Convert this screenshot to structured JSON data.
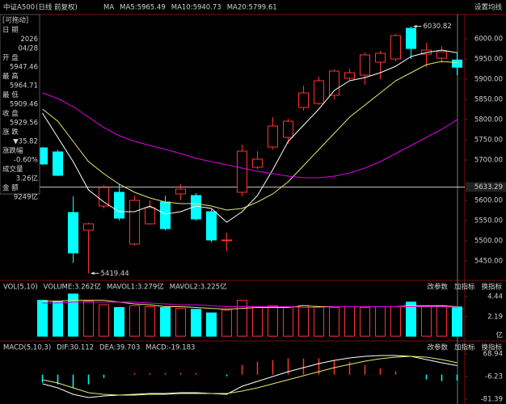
{
  "header": {
    "symbol": "中证A500",
    "period": "(日线 前复权)",
    "settings": "设置均线"
  },
  "panel_buttons": [
    "改参数",
    "加指标",
    "换指标"
  ],
  "info_panel": {
    "drag_hint": "[可拖动]",
    "rows": [
      {
        "label": "日 期",
        "values": [
          "2026",
          "04/28"
        ],
        "color": "#ffffff"
      },
      {
        "label": "开 盘",
        "values": [
          "5947.46"
        ],
        "color": "#00e0e0"
      },
      {
        "label": "最 高",
        "values": [
          "5964.71"
        ],
        "color": "#00e0e0"
      },
      {
        "label": "最 低",
        "values": [
          "5909.46"
        ],
        "color": "#00e0e0"
      },
      {
        "label": "收 盘",
        "values": [
          "5929.56"
        ],
        "color": "#00e0e0"
      },
      {
        "label": "涨 跌",
        "values": [
          "▼35.82"
        ],
        "color": "#00e0e0"
      },
      {
        "label": "涨跌幅",
        "values": [
          "-0.60%"
        ],
        "color": "#00e0e0"
      },
      {
        "label": "成交量",
        "values": [
          "3.26亿"
        ],
        "color": "#ffffff"
      },
      {
        "label": "金 额",
        "values": [
          "9249亿"
        ],
        "color": "#00e0e0"
      }
    ]
  },
  "chart_data": [
    {
      "type": "candlestick",
      "indicator": "MA",
      "up_color": "#ff3232",
      "down_color": "#00ffff",
      "open": [
        5730,
        5720,
        5570,
        5526,
        5586,
        5620,
        5492,
        5542,
        5596,
        5616,
        5612,
        5572,
        5500,
        5620,
        5682,
        5732,
        5756,
        5830,
        5840,
        5860,
        5902,
        5910,
        5942,
        5950,
        6026,
        5962,
        5952,
        5947.46
      ],
      "high": [
        5732,
        5725,
        5610,
        5545,
        5638,
        5640,
        5612,
        5600,
        5612,
        5640,
        5618,
        5578,
        5520,
        5738,
        5722,
        5806,
        5802,
        5884,
        5906,
        5924,
        5926,
        5966,
        5970,
        6012,
        6030.82,
        5990,
        5982,
        5964.71
      ],
      "low": [
        5688,
        5660,
        5445,
        5419.44,
        5580,
        5550,
        5488,
        5540,
        5526,
        5600,
        5550,
        5496,
        5474,
        5610,
        5678,
        5726,
        5740,
        5822,
        5836,
        5850,
        5898,
        5886,
        5900,
        5944,
        5950,
        5930,
        5940,
        5909.46
      ],
      "close": [
        5690,
        5662,
        5470,
        5542,
        5632,
        5556,
        5600,
        5582,
        5530,
        5628,
        5554,
        5502,
        5502,
        5722,
        5702,
        5784,
        5796,
        5866,
        5896,
        5920,
        5916,
        5960,
        5964,
        6008,
        5976,
        5972,
        5968,
        5929.56
      ],
      "series": [
        {
          "name": "MA5:5965.49",
          "color": "#ffffff",
          "values": [
            5816,
            5756,
            5696,
            5626,
            5596,
            5572,
            5572,
            5586,
            5566,
            5572,
            5586,
            5580,
            5546,
            5572,
            5612,
            5676,
            5746,
            5786,
            5826,
            5872,
            5896,
            5904,
            5916,
            5932,
            5956,
            5966,
            5972,
            5965.49
          ]
        },
        {
          "name": "MA10:5940.73",
          "color": "#e8e870",
          "values": [
            5826,
            5796,
            5746,
            5696,
            5666,
            5640,
            5620,
            5606,
            5596,
            5592,
            5592,
            5586,
            5576,
            5580,
            5596,
            5616,
            5646,
            5686,
            5726,
            5766,
            5806,
            5836,
            5866,
            5896,
            5916,
            5936,
            5944,
            5940.73
          ]
        },
        {
          "name": "MA20:5799.61",
          "color": "#e000e0",
          "values": [
            5866,
            5852,
            5832,
            5806,
            5780,
            5760,
            5746,
            5736,
            5726,
            5716,
            5704,
            5696,
            5688,
            5680,
            5672,
            5666,
            5660,
            5656,
            5656,
            5660,
            5668,
            5680,
            5696,
            5716,
            5736,
            5756,
            5776,
            5799.61
          ]
        }
      ],
      "annotations": [
        "6030.82",
        "5419.44"
      ],
      "price_line": {
        "value": 5633.29,
        "label": "5633.29"
      },
      "ylim": [
        5406,
        6060
      ],
      "yticks": [
        {
          "value": 6000,
          "label": "6000.00"
        },
        {
          "value": 5950,
          "label": "5950.00"
        },
        {
          "value": 5900,
          "label": "5900.00"
        },
        {
          "value": 5850,
          "label": "5850.00"
        },
        {
          "value": 5800,
          "label": "5800.00"
        },
        {
          "value": 5750,
          "label": "5750.00"
        },
        {
          "value": 5700,
          "label": "5700.00"
        },
        {
          "value": 5600,
          "label": "5600.00"
        },
        {
          "value": 5550,
          "label": "5550.00"
        },
        {
          "value": 5500,
          "label": "5500.00"
        },
        {
          "value": 5450,
          "label": "5450.00"
        }
      ]
    },
    {
      "type": "bar",
      "title": "VOL(5,10)",
      "bar_label": "VOLUME:3.262亿",
      "unit": "亿",
      "values": [
        4.0,
        3.9,
        4.7,
        3.9,
        3.5,
        3.2,
        3.4,
        3.3,
        3.2,
        3.1,
        3.0,
        2.6,
        2.9,
        4.0,
        3.3,
        3.4,
        3.3,
        3.4,
        3.3,
        3.2,
        3.3,
        3.2,
        3.3,
        3.3,
        3.8,
        3.3,
        3.4,
        3.262
      ],
      "series": [
        {
          "name": "MAVOL1:3.279亿",
          "color": "#e8e870",
          "values": [
            3.9,
            3.9,
            4.0,
            4.0,
            4.0,
            3.8,
            3.6,
            3.5,
            3.3,
            3.3,
            3.2,
            3.1,
            3.0,
            3.1,
            3.2,
            3.2,
            3.2,
            3.4,
            3.3,
            3.3,
            3.3,
            3.3,
            3.3,
            3.3,
            3.4,
            3.4,
            3.4,
            3.279
          ]
        },
        {
          "name": "MAVOL2:3.225亿",
          "color": "#e000e0",
          "values": [
            3.7,
            3.7,
            3.8,
            3.8,
            3.8,
            3.8,
            3.8,
            3.7,
            3.6,
            3.5,
            3.5,
            3.4,
            3.3,
            3.3,
            3.3,
            3.3,
            3.3,
            3.2,
            3.2,
            3.3,
            3.3,
            3.3,
            3.3,
            3.3,
            3.3,
            3.3,
            3.3,
            3.225
          ]
        }
      ],
      "ylim": [
        -0.35,
        5.05
      ],
      "yticks": [
        4.44,
        2.19
      ]
    },
    {
      "type": "macd",
      "title": "MACD(5,10,3)",
      "bar_label": "MACD:-19.183",
      "bar_label_color": "#e000e0",
      "values": [
        -26.8,
        -32.2,
        -43,
        -32.2,
        -10.8,
        0,
        5.4,
        5.4,
        5.4,
        5.4,
        5.4,
        0,
        -5.4,
        32.2,
        43,
        48.4,
        53.8,
        53.6,
        53.6,
        48.4,
        43,
        32.2,
        21.6,
        10.8,
        0,
        -16,
        -21.6,
        -19.183
      ],
      "series": [
        {
          "name": "DIF:30.112",
          "color": "#ffffff",
          "values": [
            -30.4,
            -43.8,
            -65.3,
            -76.0,
            -70.7,
            -68.0,
            -65.3,
            -62.6,
            -62.6,
            -59.9,
            -59.9,
            -62.6,
            -65.3,
            -38.5,
            -22.3,
            -6.2,
            9.9,
            23.3,
            36.7,
            47.5,
            55.5,
            60.9,
            63.6,
            63.6,
            60.9,
            50.2,
            39.4,
            30.112
          ]
        },
        {
          "name": "DEA:39.703",
          "color": "#e8e870",
          "values": [
            -17.0,
            -27.7,
            -43.8,
            -59.9,
            -65.3,
            -68.0,
            -68.0,
            -65.3,
            -65.3,
            -62.6,
            -62.6,
            -62.6,
            -62.6,
            -54.6,
            -43.8,
            -30.4,
            -17.0,
            -3.5,
            9.9,
            23.3,
            34.0,
            44.8,
            52.8,
            58.2,
            60.9,
            58.2,
            50.2,
            39.703
          ]
        }
      ],
      "ylim": [
        -97.5,
        106.5
      ],
      "yticks": [
        68.94,
        -6.23,
        -81.39
      ]
    }
  ]
}
